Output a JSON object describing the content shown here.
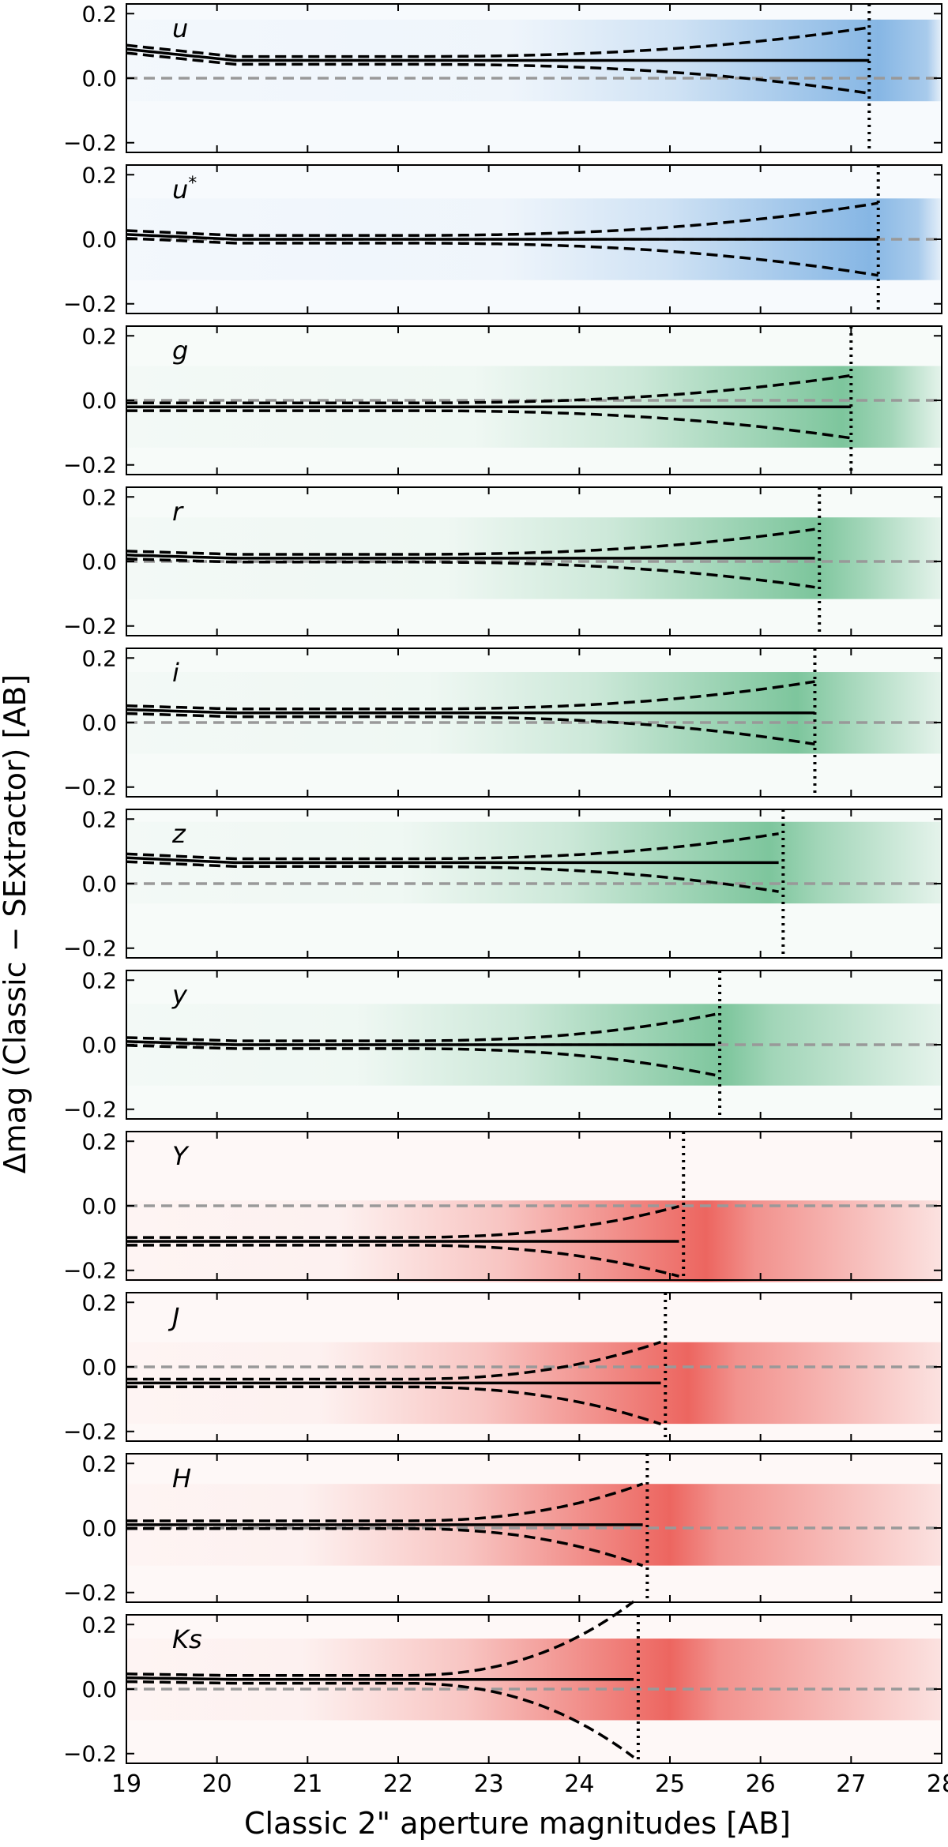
{
  "chart_data": {
    "type": "line",
    "xlabel": "Classic 2\" aperture magnitudes [AB]",
    "ylabel": "Δmag (Classic − SExtractor) [AB]",
    "xlim": [
      19,
      28
    ],
    "ylim": [
      -0.23,
      0.23
    ],
    "xticks": [
      "19",
      "20",
      "21",
      "22",
      "23",
      "24",
      "25",
      "26",
      "27",
      "28"
    ],
    "yticks": [
      "0.2",
      "0.0",
      "−0.2"
    ],
    "colors": {
      "blue": "#2a7fd0",
      "green": "#2ca25f",
      "red": "#e8413a"
    },
    "panels": [
      {
        "band": "u",
        "sup": "",
        "color": "blue",
        "median": 0.055,
        "start": 0.09,
        "limit": 27.2,
        "hist_center": 27.3,
        "hist_max": 0.55,
        "spread": 0.09
      },
      {
        "band": "u",
        "sup": "*",
        "color": "blue",
        "median": 0.0,
        "start": 0.015,
        "limit": 27.3,
        "hist_center": 27.2,
        "hist_max": 0.55,
        "spread": 0.1
      },
      {
        "band": "g",
        "sup": "",
        "color": "green",
        "median": -0.02,
        "start": -0.02,
        "limit": 27.0,
        "hist_center": 26.9,
        "hist_max": 0.6,
        "spread": 0.085
      },
      {
        "band": "r",
        "sup": "",
        "color": "green",
        "median": 0.01,
        "start": 0.02,
        "limit": 26.65,
        "hist_center": 26.6,
        "hist_max": 0.6,
        "spread": 0.08
      },
      {
        "band": "i",
        "sup": "",
        "color": "green",
        "median": 0.03,
        "start": 0.04,
        "limit": 26.6,
        "hist_center": 26.4,
        "hist_max": 0.6,
        "spread": 0.085
      },
      {
        "band": "z",
        "sup": "",
        "color": "green",
        "median": 0.065,
        "start": 0.08,
        "limit": 26.25,
        "hist_center": 26.1,
        "hist_max": 0.6,
        "spread": 0.08
      },
      {
        "band": "y",
        "sup": "",
        "color": "green",
        "median": 0.0,
        "start": 0.01,
        "limit": 25.55,
        "hist_center": 25.6,
        "hist_max": 0.6,
        "spread": 0.085
      },
      {
        "band": "Y",
        "sup": "",
        "color": "red",
        "median": -0.11,
        "start": -0.11,
        "limit": 25.15,
        "hist_center": 25.4,
        "hist_max": 0.8,
        "spread": 0.1
      },
      {
        "band": "J",
        "sup": "",
        "color": "red",
        "median": -0.05,
        "start": -0.05,
        "limit": 24.95,
        "hist_center": 25.2,
        "hist_max": 0.8,
        "spread": 0.12
      },
      {
        "band": "H",
        "sup": "",
        "color": "red",
        "median": 0.01,
        "start": 0.01,
        "limit": 24.75,
        "hist_center": 25.0,
        "hist_max": 0.8,
        "spread": 0.12
      },
      {
        "band": "Ks",
        "sup": "",
        "color": "red",
        "median": 0.03,
        "start": 0.035,
        "limit": 24.65,
        "hist_center": 25.0,
        "hist_max": 0.8,
        "spread": 0.24
      }
    ]
  }
}
